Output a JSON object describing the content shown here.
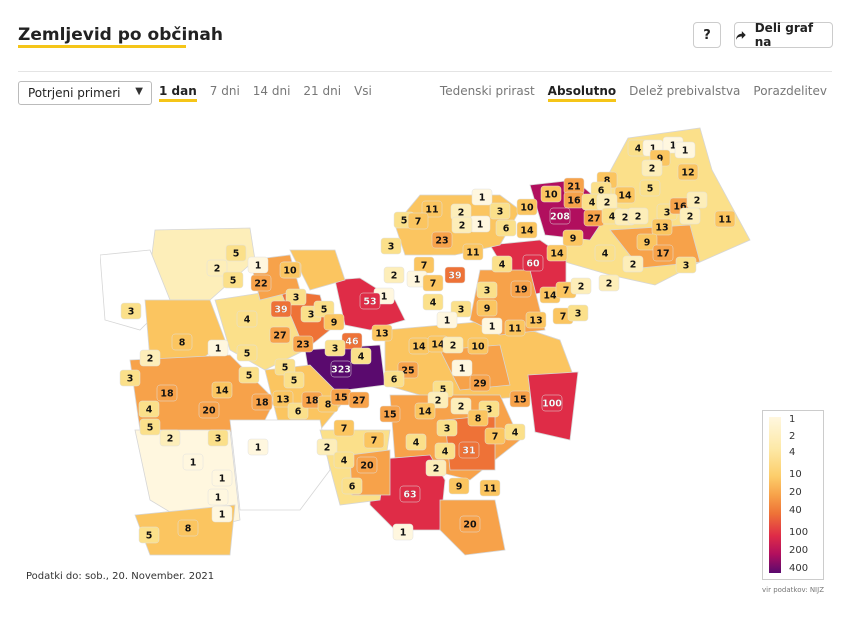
{
  "header": {
    "title": "Zemljevid po občinah",
    "help_label": "?",
    "share_label": "Deli graf na",
    "share_icon": "share-arrow-icon"
  },
  "filters": {
    "select_value": "Potrjeni primeri",
    "periods": [
      {
        "label": "1 dan",
        "active": true
      },
      {
        "label": "7 dni",
        "active": false
      },
      {
        "label": "14 dni",
        "active": false
      },
      {
        "label": "21 dni",
        "active": false
      },
      {
        "label": "Vsi",
        "active": false
      }
    ],
    "modes": [
      {
        "label": "Tedenski prirast",
        "active": false
      },
      {
        "label": "Absolutno",
        "active": true
      },
      {
        "label": "Delež prebivalstva",
        "active": false
      },
      {
        "label": "Porazdelitev",
        "active": false
      }
    ]
  },
  "map": {
    "colors": {
      "empty": "#ffffff",
      "v1": "#fff7df",
      "v2": "#fdeeb9",
      "v4": "#fbe08a",
      "v10": "#fbc560",
      "v20": "#f7a24a",
      "v40": "#ee7237",
      "v100": "#df2c47",
      "v200": "#b10f5e",
      "v400": "#5a0a6e"
    },
    "labels": [
      {
        "v": "4"
      },
      {
        "v": "1"
      },
      {
        "v": "1"
      },
      {
        "v": "1"
      },
      {
        "v": "9"
      },
      {
        "v": "2"
      },
      {
        "v": "12"
      },
      {
        "v": "5"
      },
      {
        "v": "8"
      },
      {
        "v": "21"
      },
      {
        "v": "6"
      },
      {
        "v": "10"
      },
      {
        "v": "16"
      },
      {
        "v": "4"
      },
      {
        "v": "14"
      },
      {
        "v": "2"
      },
      {
        "v": "3"
      },
      {
        "v": "16"
      },
      {
        "v": "2"
      },
      {
        "v": "11"
      },
      {
        "v": "208"
      },
      {
        "v": "27"
      },
      {
        "v": "4"
      },
      {
        "v": "2"
      },
      {
        "v": "2"
      },
      {
        "v": "13"
      },
      {
        "v": "2"
      },
      {
        "v": "9"
      },
      {
        "v": "9"
      },
      {
        "v": "17"
      },
      {
        "v": "3"
      },
      {
        "v": "14"
      },
      {
        "v": "4"
      },
      {
        "v": "2"
      },
      {
        "v": "2"
      },
      {
        "v": "60"
      },
      {
        "v": "10"
      },
      {
        "v": "14"
      },
      {
        "v": "6"
      },
      {
        "v": "1"
      },
      {
        "v": "2"
      },
      {
        "v": "1"
      },
      {
        "v": "3"
      },
      {
        "v": "11"
      },
      {
        "v": "2"
      },
      {
        "v": "23"
      },
      {
        "v": "11"
      },
      {
        "v": "5"
      },
      {
        "v": "7"
      },
      {
        "v": "3"
      },
      {
        "v": "4"
      },
      {
        "v": "19"
      },
      {
        "v": "14"
      },
      {
        "v": "7"
      },
      {
        "v": "2"
      },
      {
        "v": "39"
      },
      {
        "v": "7"
      },
      {
        "v": "2"
      },
      {
        "v": "1"
      },
      {
        "v": "7"
      },
      {
        "v": "4"
      },
      {
        "v": "9"
      },
      {
        "v": "3"
      },
      {
        "v": "1"
      },
      {
        "v": "13"
      },
      {
        "v": "7"
      },
      {
        "v": "3"
      },
      {
        "v": "11"
      },
      {
        "v": "1"
      },
      {
        "v": "3"
      },
      {
        "v": "1"
      },
      {
        "v": "10"
      },
      {
        "v": "5"
      },
      {
        "v": "2"
      },
      {
        "v": "5"
      },
      {
        "v": "1"
      },
      {
        "v": "3"
      },
      {
        "v": "22"
      },
      {
        "v": "10"
      },
      {
        "v": "3"
      },
      {
        "v": "39"
      },
      {
        "v": "3"
      },
      {
        "v": "5"
      },
      {
        "v": "53"
      },
      {
        "v": "4"
      },
      {
        "v": "27"
      },
      {
        "v": "23"
      },
      {
        "v": "9"
      },
      {
        "v": "13"
      },
      {
        "v": "46"
      },
      {
        "v": "14"
      },
      {
        "v": "14"
      },
      {
        "v": "2"
      },
      {
        "v": "10"
      },
      {
        "v": "3"
      },
      {
        "v": "8"
      },
      {
        "v": "1"
      },
      {
        "v": "5"
      },
      {
        "v": "2"
      },
      {
        "v": "3"
      },
      {
        "v": "4"
      },
      {
        "v": "25"
      },
      {
        "v": "5"
      },
      {
        "v": "323"
      },
      {
        "v": "6"
      },
      {
        "v": "1"
      },
      {
        "v": "29"
      },
      {
        "v": "5"
      },
      {
        "v": "14"
      },
      {
        "v": "5"
      },
      {
        "v": "5"
      },
      {
        "v": "18"
      },
      {
        "v": "20"
      },
      {
        "v": "18"
      },
      {
        "v": "13"
      },
      {
        "v": "6"
      },
      {
        "v": "18"
      },
      {
        "v": "8"
      },
      {
        "v": "15"
      },
      {
        "v": "27"
      },
      {
        "v": "15"
      },
      {
        "v": "2"
      },
      {
        "v": "14"
      },
      {
        "v": "2"
      },
      {
        "v": "3"
      },
      {
        "v": "8"
      },
      {
        "v": "15"
      },
      {
        "v": "100"
      },
      {
        "v": "4"
      },
      {
        "v": "5"
      },
      {
        "v": "2"
      },
      {
        "v": "3"
      },
      {
        "v": "1"
      },
      {
        "v": "7"
      },
      {
        "v": "7"
      },
      {
        "v": "4"
      },
      {
        "v": "3"
      },
      {
        "v": "4"
      },
      {
        "v": "7"
      },
      {
        "v": "4"
      },
      {
        "v": "2"
      },
      {
        "v": "4"
      },
      {
        "v": "1"
      },
      {
        "v": "31"
      },
      {
        "v": "20"
      },
      {
        "v": "2"
      },
      {
        "v": "1"
      },
      {
        "v": "6"
      },
      {
        "v": "9"
      },
      {
        "v": "11"
      },
      {
        "v": "1"
      },
      {
        "v": "63"
      },
      {
        "v": "8"
      },
      {
        "v": "1"
      },
      {
        "v": "5"
      },
      {
        "v": "20"
      },
      {
        "v": "1"
      }
    ]
  },
  "legend": {
    "ticks": [
      "1",
      "2",
      "4",
      "10",
      "20",
      "40",
      "100",
      "200",
      "400"
    ],
    "source": "vir podatkov: NIJZ"
  },
  "footnote": "Podatki do: sob., 20. November. 2021"
}
